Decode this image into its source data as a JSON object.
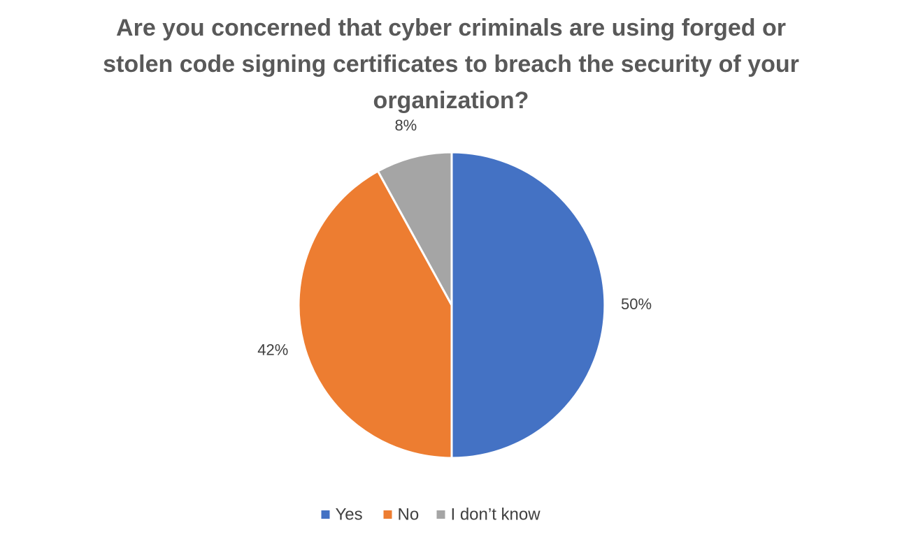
{
  "chart_data": {
    "type": "pie",
    "title": "Are you concerned that cyber criminals are using forged or stolen code signing certificates to breach the security of your organization?",
    "categories": [
      "Yes",
      "No",
      "I don’t know"
    ],
    "values": [
      50,
      42,
      8
    ],
    "value_labels": [
      "50%",
      "42%",
      "8%"
    ],
    "colors": [
      "#4472c4",
      "#ed7d31",
      "#a5a5a5"
    ],
    "legend": "bottom"
  }
}
